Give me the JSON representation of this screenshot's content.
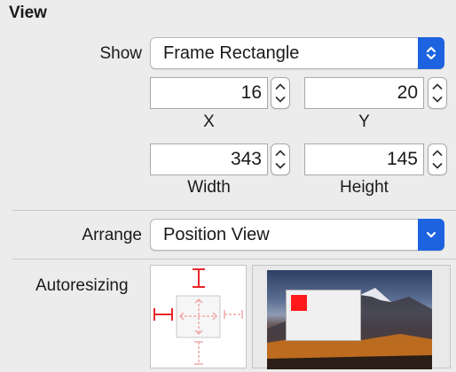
{
  "section": {
    "title": "View"
  },
  "show": {
    "label": "Show",
    "value": "Frame Rectangle"
  },
  "frame": {
    "x": {
      "value": "16",
      "label": "X"
    },
    "y": {
      "value": "20",
      "label": "Y"
    },
    "width": {
      "value": "343",
      "label": "Width"
    },
    "height": {
      "value": "145",
      "label": "Height"
    }
  },
  "arrange": {
    "label": "Arrange",
    "value": "Position View"
  },
  "autoresizing": {
    "label": "Autoresizing"
  },
  "colors": {
    "accent": "#1d63e0",
    "spring_active": "#e8262a",
    "spring_inactive": "#f0a8a8",
    "preview_view": "#ff1919"
  },
  "icons": {
    "popup_button": "up-down-chevron-icon",
    "arrange_button": "chevron-down-icon",
    "stepper": "stepper-arrows-icon"
  }
}
